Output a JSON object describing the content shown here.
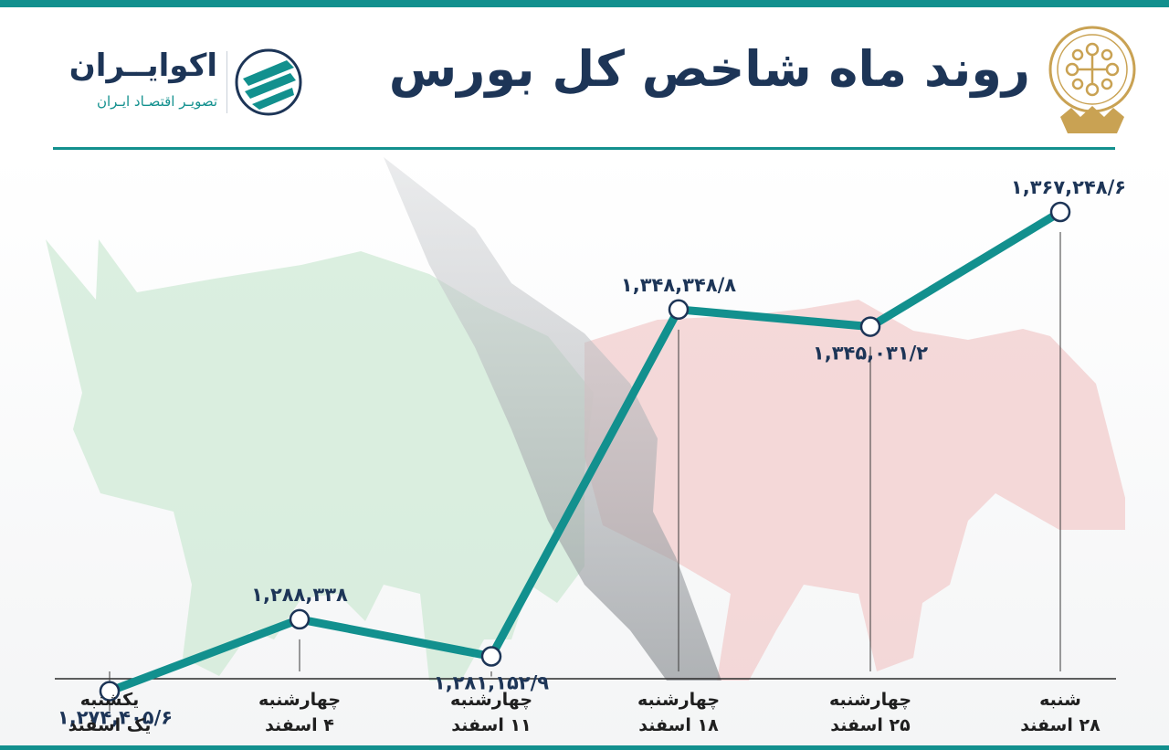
{
  "header": {
    "title": "روند ماه شاخص کل بورس",
    "brand_name": "اکوایــران",
    "brand_tagline": "تصویـر اقتصـاد ایـران"
  },
  "colors": {
    "accent": "#12908e",
    "title": "#1d3557",
    "bull": "#cfe9d6",
    "bear": "#f3cfcf"
  },
  "icons": {
    "emblem": "stock-exchange-emblem-icon",
    "brand": "ecoiran-logo-icon"
  },
  "chart_data": {
    "type": "line",
    "title": "روند ماه شاخص کل بورس",
    "xlabel": "",
    "ylabel": "",
    "grid": false,
    "ylim": [
      1260000,
      1380000
    ],
    "categories": [
      [
        "یکشنبه",
        "یک اسفند"
      ],
      [
        "چهارشنبه",
        "۴ اسفند"
      ],
      [
        "چهارشنبه",
        "۱۱ اسفند"
      ],
      [
        "چهارشنبه",
        "۱۸ اسفند"
      ],
      [
        "چهارشنبه",
        "۲۵ اسفند"
      ],
      [
        "شنبه",
        "۲۸ اسفند"
      ]
    ],
    "values": [
      1274405.6,
      1288338,
      1281152.9,
      1348348.8,
      1345031.2,
      1367248.6
    ],
    "value_labels": [
      "۱,۲۷۴,۴۰۵/۶",
      "۱,۲۸۸,۳۳۸",
      "۱,۲۸۱,۱۵۲/۹",
      "۱,۳۴۸,۳۴۸/۸",
      "۱,۳۴۵,۰۳۱/۲",
      "۱,۳۶۷,۲۴۸/۶"
    ],
    "label_positions": [
      "below",
      "above",
      "below",
      "above",
      "below",
      "above"
    ]
  }
}
